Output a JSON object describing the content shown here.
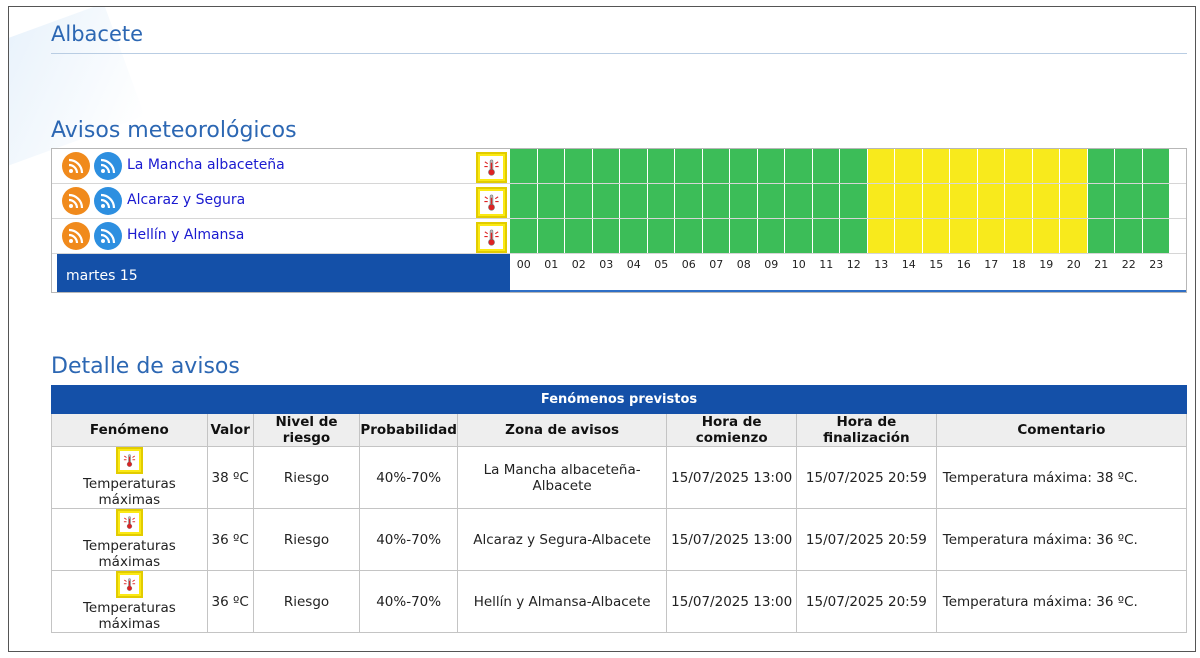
{
  "city": "Albacete",
  "sections": {
    "avisos": "Avisos meteorológicos",
    "detalle": "Detalle de avisos"
  },
  "colors": {
    "green": "#3cbd58",
    "yellow": "#f8ea1c",
    "title_blue": "#2c67b3",
    "header_blue": "#1450a8"
  },
  "timeline": {
    "day": "martes 15",
    "hours": [
      "00",
      "01",
      "02",
      "03",
      "04",
      "05",
      "06",
      "07",
      "08",
      "09",
      "10",
      "11",
      "12",
      "13",
      "14",
      "15",
      "16",
      "17",
      "18",
      "19",
      "20",
      "21",
      "22",
      "23"
    ],
    "zones": [
      {
        "name": "La Mancha albaceteña",
        "icons": [
          "rss-orange-icon",
          "rss-blue-icon"
        ],
        "warning_icon": "thermometer-icon",
        "levels": [
          "green",
          "green",
          "green",
          "green",
          "green",
          "green",
          "green",
          "green",
          "green",
          "green",
          "green",
          "green",
          "green",
          "yellow",
          "yellow",
          "yellow",
          "yellow",
          "yellow",
          "yellow",
          "yellow",
          "yellow",
          "green",
          "green",
          "green"
        ]
      },
      {
        "name": "Alcaraz y Segura",
        "icons": [
          "rss-orange-icon",
          "rss-blue-icon"
        ],
        "warning_icon": "thermometer-icon",
        "levels": [
          "green",
          "green",
          "green",
          "green",
          "green",
          "green",
          "green",
          "green",
          "green",
          "green",
          "green",
          "green",
          "green",
          "yellow",
          "yellow",
          "yellow",
          "yellow",
          "yellow",
          "yellow",
          "yellow",
          "yellow",
          "green",
          "green",
          "green"
        ]
      },
      {
        "name": "Hellín y Almansa",
        "icons": [
          "rss-orange-icon",
          "rss-blue-icon"
        ],
        "warning_icon": "thermometer-icon",
        "levels": [
          "green",
          "green",
          "green",
          "green",
          "green",
          "green",
          "green",
          "green",
          "green",
          "green",
          "green",
          "green",
          "green",
          "yellow",
          "yellow",
          "yellow",
          "yellow",
          "yellow",
          "yellow",
          "yellow",
          "yellow",
          "green",
          "green",
          "green"
        ]
      }
    ]
  },
  "detail": {
    "caption": "Fenómenos previstos",
    "headers": [
      "Fenómeno",
      "Valor",
      "Nivel de riesgo",
      "Probabilidad",
      "Zona de avisos",
      "Hora de comienzo",
      "Hora de finalización",
      "Comentario"
    ],
    "rows": [
      {
        "phenomenon": "Temperaturas máximas",
        "icon": "thermometer-icon",
        "value": "38 ºC",
        "risk": "Riesgo",
        "probability": "40%-70%",
        "zone": "La Mancha albaceteña-Albacete",
        "start": "15/07/2025 13:00",
        "end": "15/07/2025 20:59",
        "comment": "Temperatura máxima: 38 ºC."
      },
      {
        "phenomenon": "Temperaturas máximas",
        "icon": "thermometer-icon",
        "value": "36 ºC",
        "risk": "Riesgo",
        "probability": "40%-70%",
        "zone": "Alcaraz y Segura-Albacete",
        "start": "15/07/2025 13:00",
        "end": "15/07/2025 20:59",
        "comment": "Temperatura máxima: 36 ºC."
      },
      {
        "phenomenon": "Temperaturas máximas",
        "icon": "thermometer-icon",
        "value": "36 ºC",
        "risk": "Riesgo",
        "probability": "40%-70%",
        "zone": "Hellín y Almansa-Albacete",
        "start": "15/07/2025 13:00",
        "end": "15/07/2025 20:59",
        "comment": "Temperatura máxima: 36 ºC."
      }
    ]
  }
}
